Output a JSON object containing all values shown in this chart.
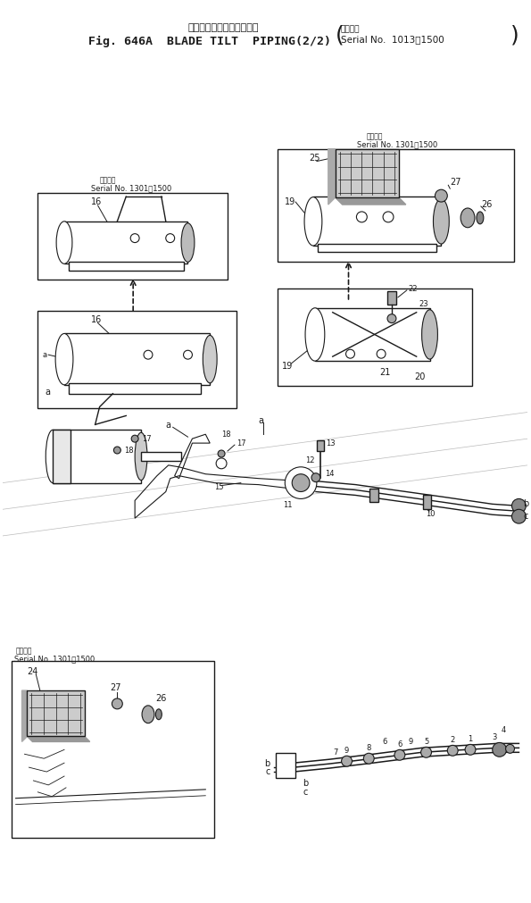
{
  "bg_color": "#ffffff",
  "line_color": "#1a1a1a",
  "fig_width": 5.95,
  "fig_height": 10.11,
  "dpi": 100,
  "title_jp": "ブレードチルトバイピング",
  "title_en": "Fig. 646A  BLADE TILT  PIPING(2/2)",
  "serial_jp": "適用号機",
  "serial_en": "Serial No.  1013～1500",
  "box_serial_jp": "適用号機",
  "box_serial_1301": "Serial No. 1301～1500"
}
